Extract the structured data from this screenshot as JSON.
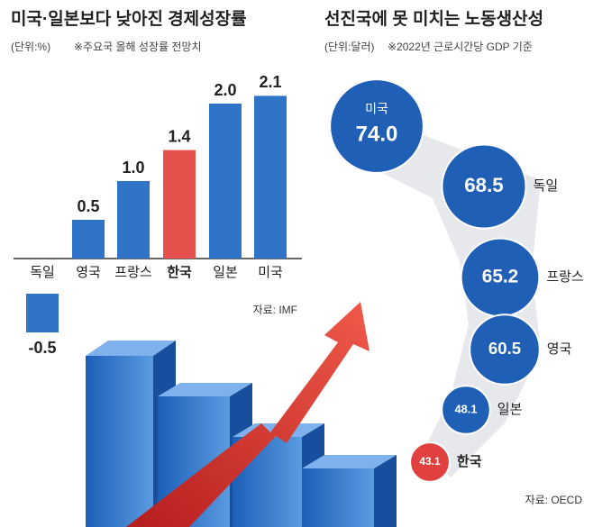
{
  "chart_data": [
    {
      "type": "bar",
      "title": "미국·일본보다 낮아진 경제성장률",
      "unit": "(단위:%)",
      "subtitle": "※주요국 올해 성장률 전망치",
      "categories": [
        "독일",
        "영국",
        "프랑스",
        "한국",
        "일본",
        "미국"
      ],
      "values": [
        -0.5,
        0.5,
        1.0,
        1.4,
        2.0,
        2.1
      ],
      "value_labels": [
        "-0.5",
        "0.5",
        "1.0",
        "1.4",
        "2.0",
        "2.1"
      ],
      "colors": [
        "#2f74c8",
        "#2f74c8",
        "#2f74c8",
        "#e6504d",
        "#2f74c8",
        "#2f74c8"
      ],
      "source": "자료: IMF"
    },
    {
      "type": "bubble",
      "title": "선진국에 못 미치는 노동생산성",
      "unit": "(단위:달러)",
      "subtitle": "※2022년 근로시간당 GDP 기준",
      "categories": [
        "미국",
        "독일",
        "프랑스",
        "영국",
        "일본",
        "한국"
      ],
      "values": [
        74.0,
        68.5,
        65.2,
        60.5,
        48.1,
        43.1
      ],
      "value_labels": [
        "74.0",
        "68.5",
        "65.2",
        "60.5",
        "48.1",
        "43.1"
      ],
      "colors": [
        "#1f5fb5",
        "#1f5fb5",
        "#1f5fb5",
        "#1f5fb5",
        "#1f5fb5",
        "#e0403f"
      ],
      "source": "자료: OECD"
    }
  ]
}
